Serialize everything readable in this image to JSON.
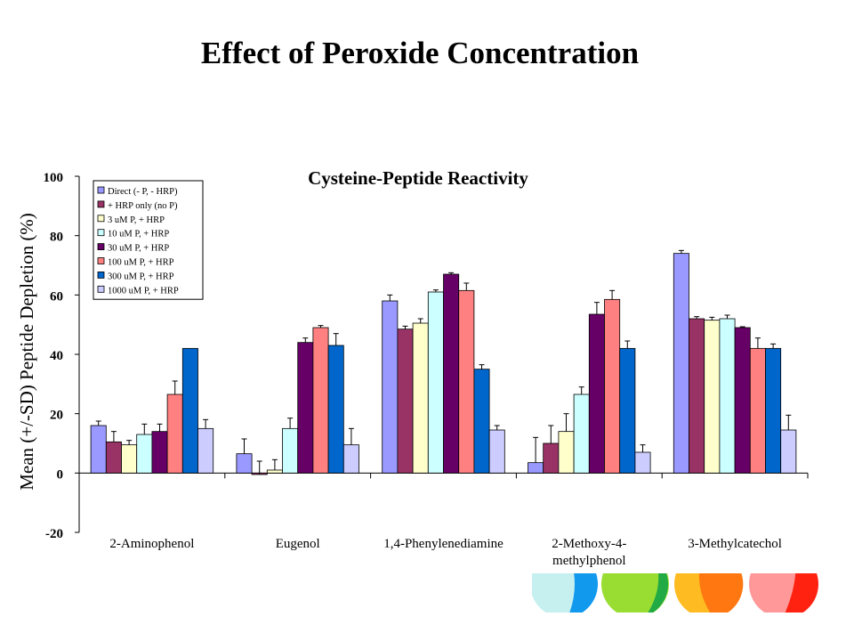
{
  "slide": {
    "title": "Effect of Peroxide Concentration"
  },
  "chart_data": {
    "type": "bar",
    "title": "Cysteine-Peptide Reactivity",
    "ylabel": "Mean (+/-SD) Peptide Depletion (%)",
    "xlabel": "",
    "ylim": [
      -20,
      100
    ],
    "yticks": [
      -20,
      0,
      20,
      40,
      60,
      80,
      100
    ],
    "grid": false,
    "legend_position": "top-left",
    "categories": [
      "2-Aminophenol",
      "Eugenol",
      "1,4-Phenylenediamine",
      "2-Methoxy-4-methylphenol",
      "3-Methylcatechol"
    ],
    "category_label_lines": [
      [
        "2-Aminophenol"
      ],
      [
        "Eugenol"
      ],
      [
        "1,4-Phenylenediamine"
      ],
      [
        "2-Methoxy-4-",
        "methylphenol"
      ],
      [
        "3-Methylcatechol"
      ]
    ],
    "series": [
      {
        "name": "Direct (- P, - HRP)",
        "color": "#9999ff",
        "values": [
          16,
          6.5,
          58,
          3.5,
          74
        ],
        "errors": [
          1.5,
          5,
          2,
          8.5,
          1
        ]
      },
      {
        "name": "+ HRP only (no P)",
        "color": "#993366",
        "values": [
          10.5,
          -0.5,
          48.5,
          10,
          52
        ],
        "errors": [
          3.5,
          4.5,
          1,
          6,
          0.7
        ]
      },
      {
        "name": "3 uM P, + HRP",
        "color": "#ffffcc",
        "values": [
          9.5,
          1,
          50.5,
          14,
          51.5
        ],
        "errors": [
          1.5,
          3.5,
          1.5,
          6,
          1
        ]
      },
      {
        "name": "10 uM P, + HRP",
        "color": "#ccffff",
        "values": [
          13,
          15,
          61,
          26.5,
          52
        ],
        "errors": [
          3.5,
          3.5,
          0.7,
          2.5,
          1.2
        ]
      },
      {
        "name": "30 uM P, + HRP",
        "color": "#660066",
        "values": [
          14,
          44,
          67,
          53.5,
          49
        ],
        "errors": [
          2.5,
          1.5,
          0.5,
          4,
          0.3
        ]
      },
      {
        "name": "100 uM P, + HRP",
        "color": "#ff8080",
        "values": [
          26.5,
          49,
          61.5,
          58.5,
          42
        ],
        "errors": [
          4.5,
          0.7,
          2.5,
          3,
          3.5
        ]
      },
      {
        "name": "300 uM P, + HRP",
        "color": "#0066cc",
        "values": [
          42,
          43,
          35,
          42,
          42
        ],
        "errors": [
          0,
          4,
          1.5,
          2.5,
          1.5
        ]
      },
      {
        "name": "1000 uM P, + HRP",
        "color": "#ccccff",
        "values": [
          15,
          9.5,
          14.5,
          7,
          14.5
        ],
        "errors": [
          3,
          5.5,
          1.5,
          2.5,
          5
        ]
      }
    ]
  },
  "colors": {
    "decor_cyan_light": "#c6f0f0",
    "decor_cyan": "#1199ee",
    "decor_green_light": "#99dd33",
    "decor_green": "#22aa44",
    "decor_orange_light": "#ffbb22",
    "decor_orange": "#ff7711",
    "decor_red_light": "#ff9999",
    "decor_red": "#ff2211"
  }
}
